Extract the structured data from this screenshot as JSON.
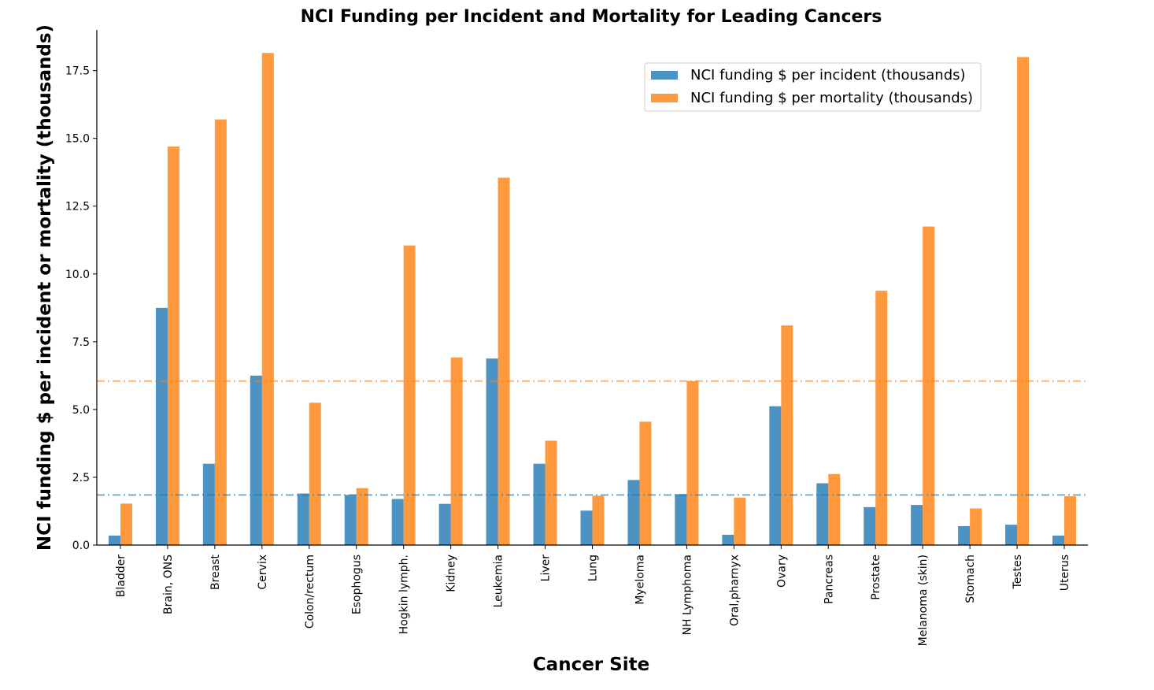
{
  "chart_data": {
    "type": "bar",
    "title": "NCI Funding per Incident and Mortality for Leading Cancers",
    "xlabel": "Cancer Site",
    "ylabel": "NCI funding $ per incident or mortality (thousands)",
    "ylim": [
      0,
      19
    ],
    "yticks": [
      "0.0",
      "2.5",
      "5.0",
      "7.5",
      "10.0",
      "12.5",
      "15.0",
      "17.5"
    ],
    "categories": [
      "Bladder",
      "Brain, ONS",
      "Breast",
      "Cervix",
      "Colon/rectum",
      "Esophogus",
      "Hogkin lymph.",
      "Kidney",
      "Leukemia",
      "Liver",
      "Lung",
      "Myeloma",
      "NH Lymphoma",
      "Oral,pharnyx",
      "Ovary",
      "Pancreas",
      "Prostate",
      "Melanoma (skin)",
      "Stomach",
      "Testes",
      "Uterus"
    ],
    "series": [
      {
        "name": "NCI funding $ per incident (thousands)",
        "color": "#1f77b4",
        "values": [
          0.35,
          8.75,
          3.0,
          6.25,
          1.9,
          1.85,
          1.7,
          1.52,
          6.88,
          3.0,
          1.27,
          2.4,
          1.88,
          0.38,
          5.12,
          2.28,
          1.4,
          1.48,
          0.7,
          0.75,
          0.35
        ]
      },
      {
        "name": "NCI funding $ per mortality (thousands)",
        "color": "#ff7f0e",
        "values": [
          1.53,
          14.7,
          15.7,
          18.15,
          5.25,
          2.1,
          11.05,
          6.92,
          13.55,
          3.85,
          1.82,
          4.55,
          6.05,
          1.75,
          8.1,
          2.62,
          9.38,
          11.75,
          1.35,
          18.0,
          1.8
        ]
      }
    ],
    "reference_lines": [
      {
        "value": 6.05,
        "color": "#ff7f0e",
        "style": "dashdot"
      },
      {
        "value": 1.85,
        "color": "#1f77b4",
        "style": "dashdot"
      }
    ],
    "grid": false,
    "legend_position": "top-right"
  }
}
